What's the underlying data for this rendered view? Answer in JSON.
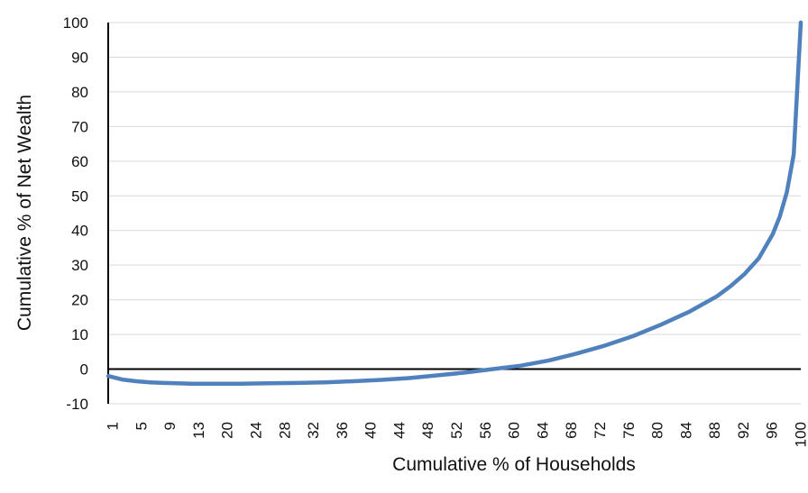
{
  "chart_data": {
    "type": "line",
    "xlabel": "Cumulative % of Households",
    "ylabel": "Cumulative % of Net Wealth",
    "ylim": [
      -10,
      100
    ],
    "y_ticks": [
      -10,
      0,
      10,
      20,
      30,
      40,
      50,
      60,
      70,
      80,
      90,
      100
    ],
    "x_tick_labels": [
      "1",
      "5",
      "9",
      "13",
      "20",
      "24",
      "28",
      "32",
      "36",
      "40",
      "44",
      "48",
      "52",
      "56",
      "60",
      "64",
      "68",
      "72",
      "76",
      "80",
      "84",
      "88",
      "92",
      "96",
      "100"
    ],
    "grid": true,
    "legend": "none",
    "series": [
      {
        "color": "#4f81bd",
        "x": [
          1,
          3,
          5,
          7,
          9,
          13,
          16,
          20,
          24,
          28,
          32,
          36,
          40,
          44,
          48,
          52,
          56,
          58,
          60,
          64,
          68,
          72,
          76,
          80,
          84,
          88,
          90,
          92,
          94,
          96,
          97,
          98,
          99,
          100
        ],
        "y": [
          -2,
          -3,
          -3.5,
          -3.8,
          -4,
          -4.2,
          -4.2,
          -4.2,
          -4.1,
          -4,
          -3.8,
          -3.5,
          -3.1,
          -2.6,
          -1.8,
          -1,
          0,
          0.5,
          1,
          2.5,
          4.5,
          6.8,
          9.5,
          12.8,
          16.5,
          21,
          24,
          27.5,
          32,
          39,
          44,
          51,
          62,
          100
        ]
      }
    ]
  }
}
